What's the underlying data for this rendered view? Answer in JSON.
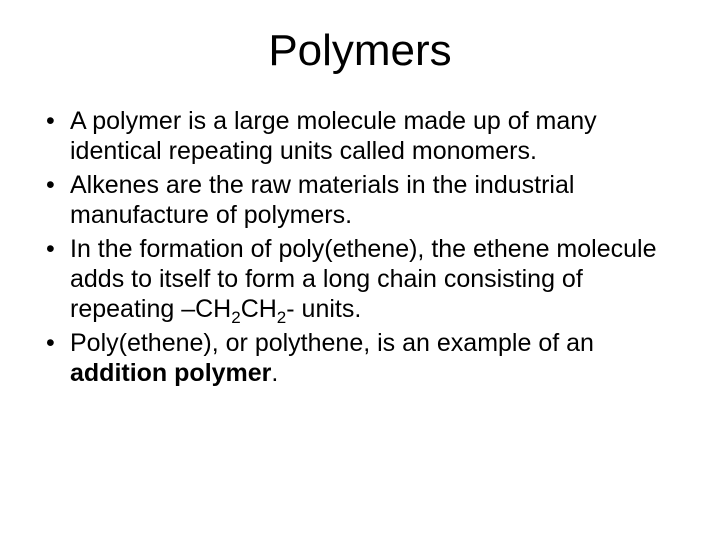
{
  "title": "Polymers",
  "title_fontsize": 44,
  "body_fontsize": 25,
  "text_color": "#000000",
  "background_color": "#ffffff",
  "bullets": [
    {
      "html": "A polymer is a large molecule made up of many identical repeating units called monomers."
    },
    {
      "html": "Alkenes are the raw materials in the industrial manufacture of polymers."
    },
    {
      "html": "In the formation of poly(ethene), the ethene molecule adds to itself to form a long chain consisting of repeating –CH<span class=\"sub\">2</span>CH<span class=\"sub\">2</span>- units."
    },
    {
      "html": "Poly(ethene), or polythene, is an example of an <span class=\"bold\">addition polymer</span>."
    }
  ]
}
